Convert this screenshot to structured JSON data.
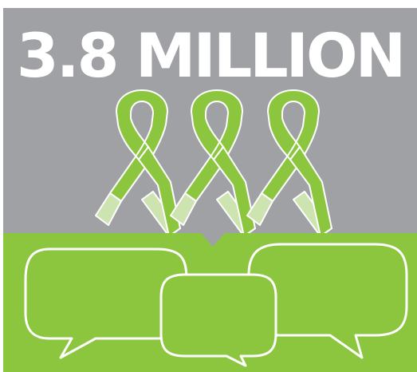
{
  "headline": "3.8 MILLION",
  "colors": {
    "top_panel": "#a0a1a4",
    "bottom_panel": "#8cc63f",
    "ribbon_green": "#8cc63f",
    "ribbon_light": "#cde3b0",
    "text": "#ffffff"
  },
  "icons": {
    "ribbons": [
      "awareness-ribbon-icon",
      "awareness-ribbon-icon",
      "awareness-ribbon-icon"
    ],
    "bubbles": [
      "speech-bubble-icon",
      "speech-bubble-icon",
      "speech-bubble-icon"
    ]
  }
}
